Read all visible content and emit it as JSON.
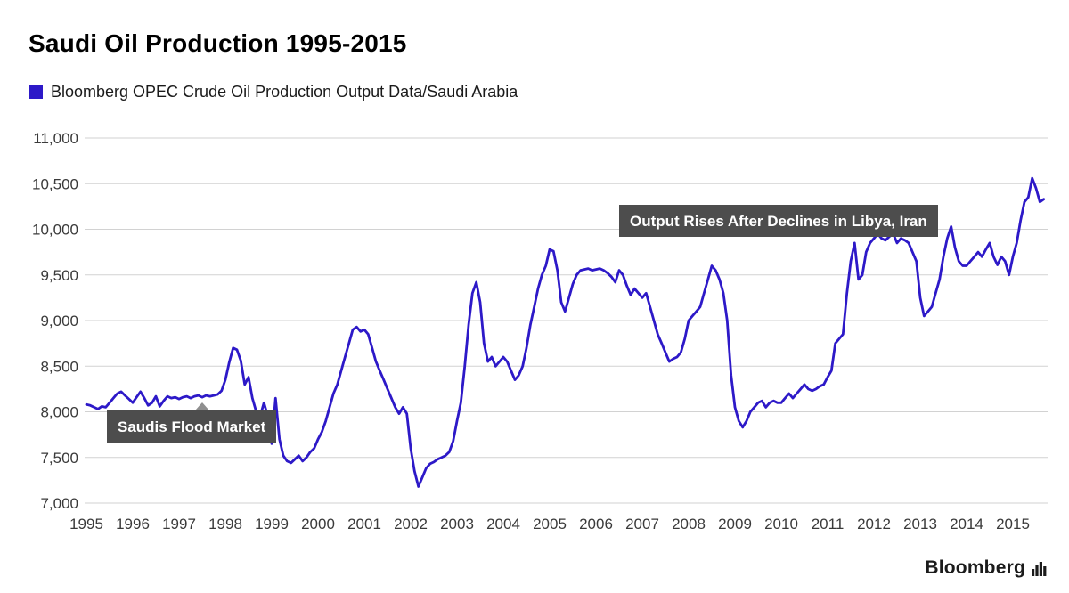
{
  "header": {
    "title": "Saudi Oil Production 1995-2015",
    "legend": {
      "label": "Bloomberg OPEC Crude Oil Production Output Data/Saudi Arabia",
      "swatch_color": "#2d19c8"
    }
  },
  "footer": {
    "brand": "Bloomberg"
  },
  "chart_data": {
    "type": "line",
    "title": "Saudi Oil Production 1995-2015",
    "xlabel": "",
    "ylabel": "",
    "grid": "horizontal",
    "legend_position": "top-left",
    "x_start": 1995,
    "points_per_year": 12,
    "xticks": [
      1995,
      1996,
      1997,
      1998,
      1999,
      2000,
      2001,
      2002,
      2003,
      2004,
      2005,
      2006,
      2007,
      2008,
      2009,
      2010,
      2011,
      2012,
      2013,
      2014,
      2015
    ],
    "ylim": [
      7000,
      11000
    ],
    "yticks": [
      7000,
      7500,
      8000,
      8500,
      9000,
      9500,
      10000,
      10500,
      11000
    ],
    "series": [
      {
        "name": "Bloomberg OPEC Crude Oil Production Output Data/Saudi Arabia",
        "color": "#2d19c8",
        "values": [
          8080,
          8070,
          8050,
          8030,
          8060,
          8050,
          8100,
          8150,
          8200,
          8220,
          8180,
          8140,
          8100,
          8160,
          8220,
          8150,
          8070,
          8100,
          8170,
          8060,
          8120,
          8170,
          8150,
          8160,
          8140,
          8160,
          8170,
          8150,
          8170,
          8180,
          8160,
          8180,
          8170,
          8180,
          8190,
          8230,
          8350,
          8540,
          8700,
          8680,
          8560,
          8300,
          8380,
          8150,
          8000,
          7950,
          8100,
          7950,
          7650,
          8150,
          7700,
          7520,
          7460,
          7440,
          7480,
          7520,
          7460,
          7500,
          7560,
          7600,
          7700,
          7780,
          7900,
          8050,
          8200,
          8300,
          8450,
          8600,
          8750,
          8900,
          8930,
          8880,
          8900,
          8850,
          8700,
          8550,
          8450,
          8350,
          8250,
          8150,
          8050,
          7980,
          8050,
          7980,
          7600,
          7350,
          7180,
          7280,
          7380,
          7430,
          7450,
          7480,
          7500,
          7520,
          7560,
          7680,
          7900,
          8100,
          8500,
          8950,
          9300,
          9420,
          9200,
          8750,
          8550,
          8600,
          8500,
          8550,
          8600,
          8550,
          8450,
          8350,
          8400,
          8500,
          8700,
          8950,
          9150,
          9350,
          9500,
          9600,
          9780,
          9760,
          9550,
          9200,
          9100,
          9250,
          9400,
          9500,
          9550,
          9560,
          9570,
          9550,
          9560,
          9570,
          9550,
          9520,
          9480,
          9420,
          9550,
          9500,
          9380,
          9280,
          9350,
          9300,
          9250,
          9300,
          9150,
          9000,
          8850,
          8750,
          8650,
          8550,
          8580,
          8600,
          8650,
          8800,
          9000,
          9050,
          9100,
          9150,
          9300,
          9450,
          9600,
          9550,
          9450,
          9300,
          9000,
          8400,
          8050,
          7900,
          7830,
          7900,
          8000,
          8050,
          8100,
          8120,
          8050,
          8100,
          8120,
          8100,
          8100,
          8150,
          8200,
          8150,
          8200,
          8250,
          8300,
          8250,
          8230,
          8250,
          8280,
          8300,
          8380,
          8450,
          8750,
          8800,
          8850,
          9300,
          9650,
          9850,
          9450,
          9500,
          9750,
          9850,
          9900,
          9950,
          9900,
          9880,
          9920,
          9950,
          9850,
          9900,
          9880,
          9850,
          9750,
          9650,
          9250,
          9050,
          9100,
          9150,
          9300,
          9450,
          9700,
          9900,
          10030,
          9800,
          9650,
          9600,
          9600,
          9650,
          9700,
          9750,
          9700,
          9780,
          9850,
          9700,
          9610,
          9700,
          9650,
          9500,
          9700,
          9850,
          10100,
          10300,
          10350,
          10560,
          10450,
          10300,
          10330
        ]
      }
    ],
    "annotations": [
      {
        "text": "Saudis Flood Market",
        "anchor_year": 1995.45,
        "anchor_value": 8010,
        "pointer_year": 1997.5
      },
      {
        "text": "Output Rises After Declines in Libya, Iran",
        "anchor_year": 2006.5,
        "anchor_value": 10265,
        "pointer_year": null
      }
    ]
  }
}
